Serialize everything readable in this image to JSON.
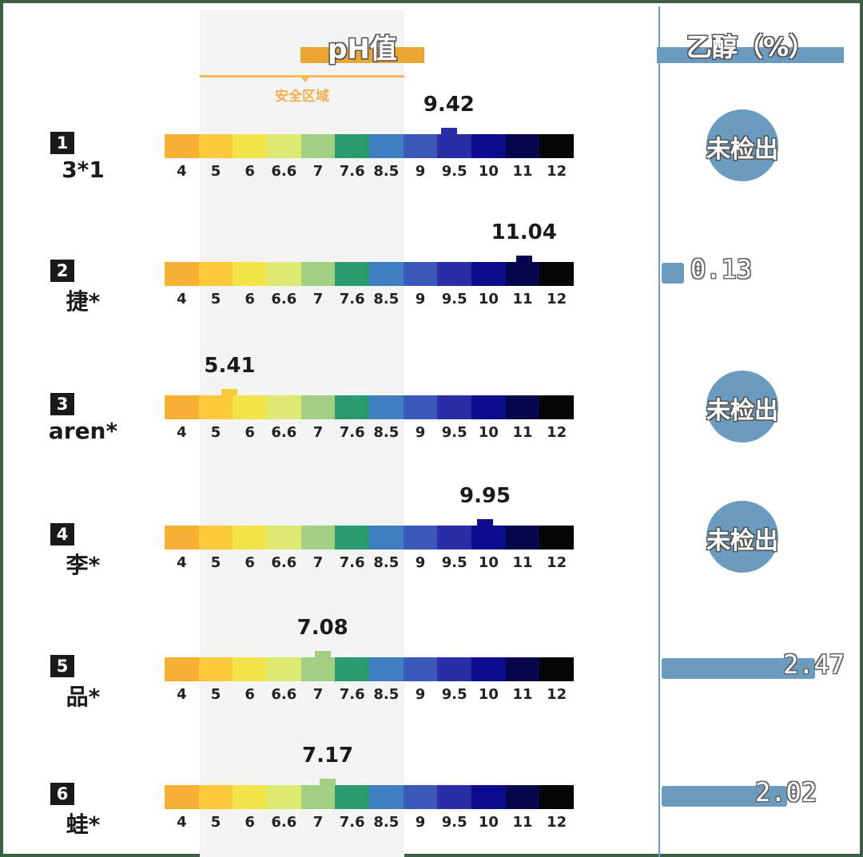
{
  "ph_header": "pH值",
  "safe_zone_label": "安全区域",
  "ethanol_header": "乙醇（%）",
  "not_detected_label": "未检出",
  "scale_colors": [
    "#f7b034",
    "#fdc93c",
    "#f3e34b",
    "#dcea73",
    "#a3cf85",
    "#2a9b6e",
    "#3f7fc1",
    "#3b59b9",
    "#2a2ea5",
    "#0c0c8c",
    "#07074d",
    "#050505"
  ],
  "chart_data": {
    "type": "table",
    "ph_ticks": [
      "4",
      "5",
      "6",
      "6.6",
      "7",
      "7.6",
      "8.5",
      "9",
      "9.5",
      "10",
      "11",
      "12"
    ],
    "ph_safe_range": [
      5,
      8.5
    ],
    "samples": [
      {
        "rank": "1",
        "name": "3*1",
        "ph": 9.42,
        "ph_label": "9.42",
        "ethanol": null,
        "ethanol_label": ""
      },
      {
        "rank": "2",
        "name": "捷*",
        "ph": 11.04,
        "ph_label": "11.04",
        "ethanol": 0.13,
        "ethanol_label": "0.13"
      },
      {
        "rank": "3",
        "name": "aren*",
        "ph": 5.41,
        "ph_label": "5.41",
        "ethanol": null,
        "ethanol_label": ""
      },
      {
        "rank": "4",
        "name": "李*",
        "ph": 9.95,
        "ph_label": "9.95",
        "ethanol": null,
        "ethanol_label": ""
      },
      {
        "rank": "5",
        "name": "品*",
        "ph": 7.08,
        "ph_label": "7.08",
        "ethanol": 2.47,
        "ethanol_label": "2.47"
      },
      {
        "rank": "6",
        "name": "蛙*",
        "ph": 7.17,
        "ph_label": "7.17",
        "ethanol": 2.02,
        "ethanol_label": "2.02"
      }
    ]
  }
}
